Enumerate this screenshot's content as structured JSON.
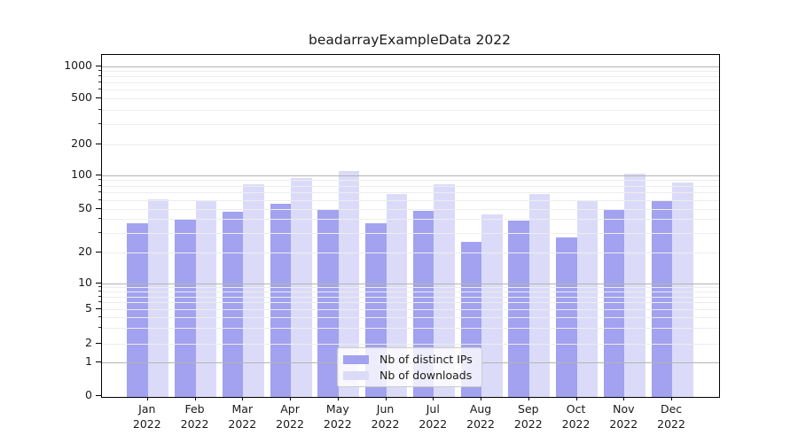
{
  "chart_data": {
    "type": "bar",
    "title": "beadarrayExampleData 2022",
    "categories": [
      "Jan",
      "Feb",
      "Mar",
      "Apr",
      "May",
      "Jun",
      "Jul",
      "Aug",
      "Sep",
      "Oct",
      "Nov",
      "Dec"
    ],
    "category_year": "2022",
    "series": [
      {
        "name": "Nb of distinct IPs",
        "color": "#a2a2f0",
        "values": [
          37,
          40,
          47,
          55,
          50,
          37,
          48,
          25,
          39,
          27,
          49,
          60
        ]
      },
      {
        "name": "Nb of downloads",
        "color": "#dbdbf9",
        "values": [
          61,
          58,
          82,
          93,
          110,
          67,
          82,
          44,
          68,
          60,
          104,
          85
        ]
      }
    ],
    "xlabel": "",
    "ylabel": "",
    "yticks": [
      0,
      1,
      2,
      5,
      10,
      20,
      50,
      100,
      200,
      500,
      1000
    ],
    "ylim": [
      0,
      1100
    ],
    "yscale": "log-like (0,1,2,5 sequence)",
    "grid": {
      "orientation": "horizontal",
      "major_values": [
        1,
        10,
        100,
        1000
      ],
      "minor": "log sub-decades 2-9",
      "on": true
    },
    "legend": {
      "position": "bottom-center",
      "entries": [
        "Nb of distinct IPs",
        "Nb of downloads"
      ]
    }
  },
  "colors": {
    "background": "#ffffff",
    "bar_distinct_ips": "#a2a2f0",
    "bar_downloads": "#dbdbf9",
    "grid_major": "#b4b4b4",
    "grid_minor": "#ededed",
    "spine": "#000000",
    "text": "#1a1a1a",
    "legend_border": "#cccccc"
  }
}
